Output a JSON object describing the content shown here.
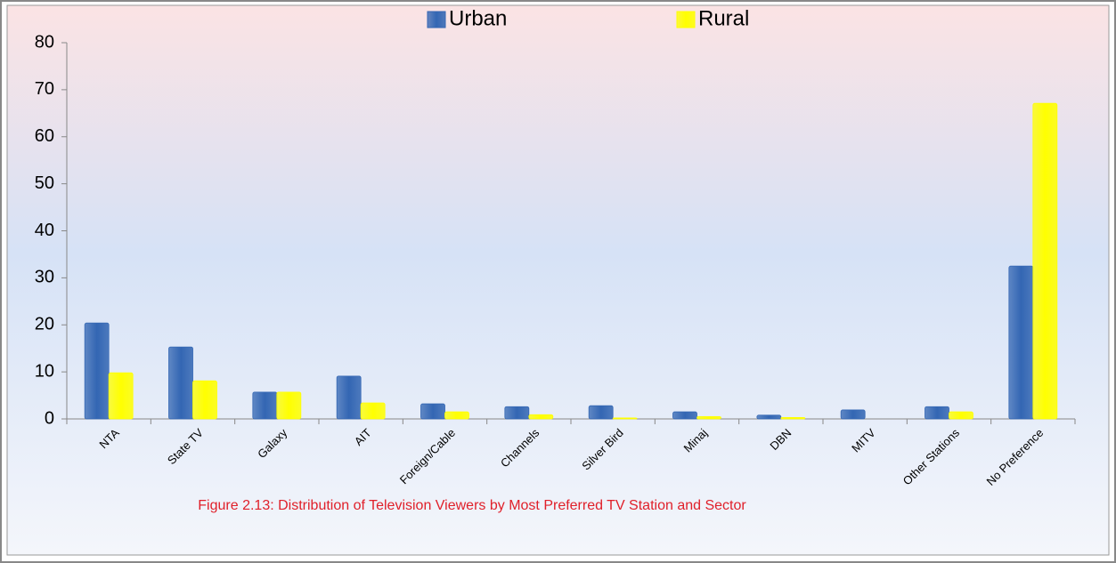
{
  "chart_data": {
    "type": "bar",
    "caption": "Figure 2.13: Distribution of Television Viewers by Most Preferred TV Station and Sector",
    "categories": [
      "NTA",
      "State TV",
      "Galaxy",
      "AIT",
      "Foreign/Cable",
      "Channels",
      "Silver Bird",
      "Minaj",
      "DBN",
      "MITV",
      "Other Stations",
      "No Preference"
    ],
    "series": [
      {
        "name": "Urban",
        "color": "#3366b3",
        "values": [
          20.4,
          15.3,
          5.7,
          9.1,
          3.2,
          2.6,
          2.8,
          1.5,
          0.8,
          1.9,
          2.6,
          32.5
        ]
      },
      {
        "name": "Rural",
        "color": "#ffff00",
        "values": [
          9.8,
          8.1,
          5.7,
          3.4,
          1.5,
          0.9,
          0.2,
          0.5,
          0.3,
          0,
          1.5,
          67.1
        ]
      }
    ],
    "ylim": [
      0,
      80
    ],
    "yticks": [
      0,
      10,
      20,
      30,
      40,
      50,
      60,
      70,
      80
    ],
    "legend": "top"
  }
}
